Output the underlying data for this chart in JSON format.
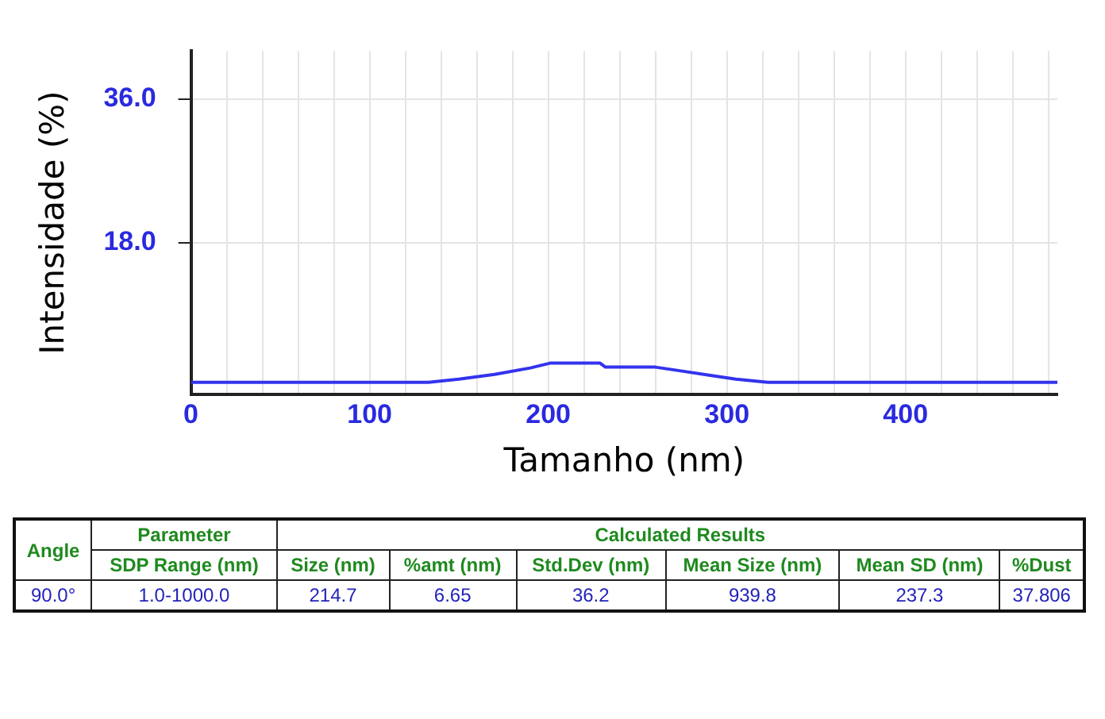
{
  "chart_data": {
    "type": "line",
    "xlabel": "Tamanho (nm)",
    "ylabel": "Intensidade (%)",
    "x": [
      0,
      133,
      150,
      170,
      190,
      201,
      229,
      232,
      260,
      275,
      290,
      305,
      323,
      485
    ],
    "series": [
      {
        "color": "#3333ee",
        "values": [
          0.5,
          0.5,
          0.9,
          1.5,
          2.3,
          2.9,
          2.9,
          2.4,
          2.4,
          1.9,
          1.4,
          0.9,
          0.5,
          0.5
        ]
      }
    ],
    "xlim": [
      0,
      485
    ],
    "ylim": [
      -1,
      42
    ],
    "xticks": [
      0,
      {
        "value": 20,
        "label": null
      },
      {
        "value": 40,
        "label": null
      },
      {
        "value": 60,
        "label": null
      },
      {
        "value": 80,
        "label": null
      },
      100,
      {
        "value": 120,
        "label": null
      },
      {
        "value": 140,
        "label": null
      },
      {
        "value": 160,
        "label": null
      },
      {
        "value": 180,
        "label": null
      },
      200,
      {
        "value": 220,
        "label": null
      },
      {
        "value": 240,
        "label": null
      },
      {
        "value": 260,
        "label": null
      },
      {
        "value": 280,
        "label": null
      },
      300,
      {
        "value": 320,
        "label": null
      },
      {
        "value": 340,
        "label": null
      },
      {
        "value": 360,
        "label": null
      },
      {
        "value": 380,
        "label": null
      },
      400,
      {
        "value": 420,
        "label": null
      },
      {
        "value": 440,
        "label": null
      },
      {
        "value": 460,
        "label": null
      },
      {
        "value": 480,
        "label": null
      }
    ],
    "yticks": [
      {
        "value": 18,
        "label": "18.0"
      },
      {
        "value": 36,
        "label": "36.0"
      }
    ],
    "grid": true,
    "legend": false,
    "marker": "none",
    "line_style": "solid",
    "annotations": [
      "Angle",
      "Parameter",
      "Calculated Results",
      "SDP Range (nm)",
      "Size (nm)",
      "%amt (nm)",
      "Std.Dev (nm)",
      "Mean Size (nm)",
      "Mean SD (nm)",
      "%Dust",
      "90.0°",
      "1.0-1000.0",
      "214.7",
      "6.65",
      "36.2",
      "939.8",
      "237.3",
      "37.806"
    ]
  }
}
